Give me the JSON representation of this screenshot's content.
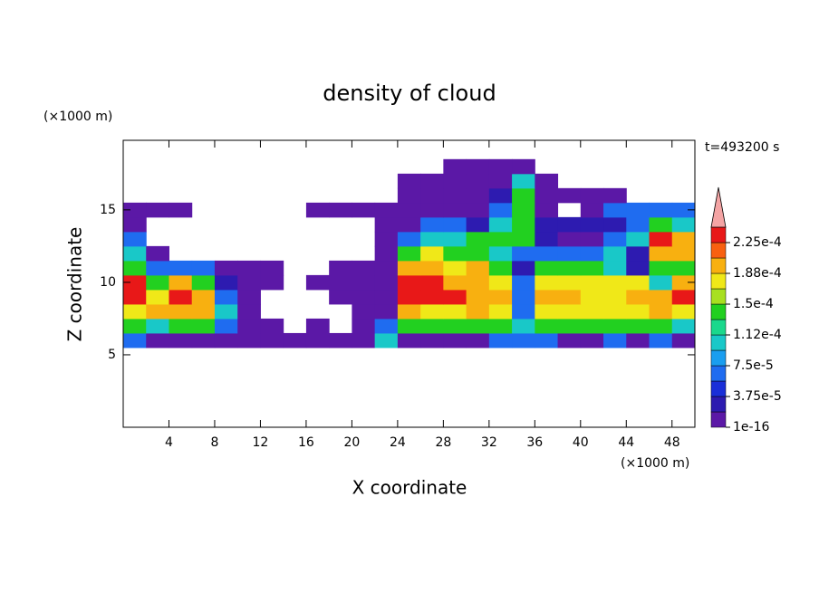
{
  "chart_data": {
    "type": "contour",
    "title": "density of cloud",
    "x_label": "X coordinate",
    "y_label": "Z coordinate",
    "x_unit": "(×1000 m)",
    "y_unit": "(×1000 m)",
    "time_label": "t=493200 s",
    "xlim": [
      0,
      50
    ],
    "xticks": [
      4,
      8,
      12,
      16,
      20,
      24,
      28,
      32,
      36,
      40,
      44,
      48
    ],
    "ylim": [
      0,
      19.8
    ],
    "yticks": [
      5,
      10,
      15
    ],
    "x": [
      1,
      3,
      5,
      7,
      9,
      11,
      13,
      15,
      17,
      19,
      21,
      23,
      25,
      27,
      29,
      31,
      33,
      35,
      37,
      39,
      41,
      43,
      45,
      47,
      49
    ],
    "y": [
      6,
      7,
      8,
      9,
      10,
      11,
      12,
      13,
      14,
      15,
      16,
      17,
      18
    ],
    "values": [
      [
        6e-05,
        1e-05,
        1e-05,
        1e-05,
        1e-05,
        1e-05,
        1e-05,
        1e-05,
        1e-05,
        1e-05,
        1e-05,
        0.0001,
        1e-05,
        1e-05,
        1e-05,
        1e-05,
        6e-05,
        6e-05,
        6e-05,
        1e-05,
        1e-05,
        6e-05,
        1e-05,
        6e-05,
        1e-05
      ],
      [
        0.00014,
        0.0001,
        0.00014,
        0.00014,
        6e-05,
        1e-05,
        1e-05,
        null,
        1e-05,
        null,
        1e-05,
        6e-05,
        0.00014,
        0.00014,
        0.00014,
        0.00014,
        0.00014,
        0.0001,
        0.00014,
        0.00014,
        0.00014,
        0.00014,
        0.00014,
        0.00014,
        0.0001
      ],
      [
        0.00017,
        0.0002,
        0.0002,
        0.0002,
        0.0001,
        1e-05,
        null,
        null,
        null,
        null,
        1e-05,
        1e-05,
        0.0002,
        0.00017,
        0.00017,
        0.0002,
        0.00017,
        6e-05,
        0.00017,
        0.00017,
        0.00017,
        0.00017,
        0.00017,
        0.0002,
        0.00017
      ],
      [
        0.00023,
        0.00017,
        0.00023,
        0.0002,
        6e-05,
        1e-05,
        null,
        null,
        null,
        1e-05,
        1e-05,
        1e-05,
        0.00023,
        0.00023,
        0.00023,
        0.0002,
        0.0002,
        6e-05,
        0.0002,
        0.0002,
        0.00017,
        0.00017,
        0.0002,
        0.0002,
        0.00023
      ],
      [
        0.00023,
        0.00014,
        0.0002,
        0.00014,
        3e-05,
        1e-05,
        1e-05,
        null,
        1e-05,
        1e-05,
        1e-05,
        1e-05,
        0.00023,
        0.00023,
        0.0002,
        0.0002,
        0.00017,
        6e-05,
        0.00017,
        0.00017,
        0.00017,
        0.00017,
        0.00017,
        0.0001,
        0.0002
      ],
      [
        0.00014,
        6e-05,
        6e-05,
        6e-05,
        1e-05,
        1e-05,
        1e-05,
        null,
        null,
        1e-05,
        1e-05,
        1e-05,
        0.0002,
        0.0002,
        0.00017,
        0.0002,
        0.00014,
        3e-05,
        0.00014,
        0.00014,
        0.00014,
        0.0001,
        3e-05,
        0.00014,
        0.00014
      ],
      [
        0.0001,
        1e-05,
        null,
        null,
        null,
        null,
        null,
        null,
        null,
        null,
        null,
        1e-05,
        0.00014,
        0.00017,
        0.00014,
        0.00014,
        0.0001,
        6e-05,
        6e-05,
        6e-05,
        6e-05,
        0.0001,
        3e-05,
        0.0002,
        0.0002
      ],
      [
        6e-05,
        null,
        null,
        null,
        null,
        null,
        null,
        null,
        null,
        null,
        null,
        1e-05,
        6e-05,
        0.0001,
        0.0001,
        0.00014,
        0.00014,
        0.00014,
        3e-05,
        1e-05,
        1e-05,
        6e-05,
        0.0001,
        0.00023,
        0.0002
      ],
      [
        1e-05,
        null,
        null,
        null,
        null,
        null,
        null,
        null,
        null,
        null,
        null,
        1e-05,
        1e-05,
        6e-05,
        6e-05,
        3e-05,
        0.0001,
        0.00014,
        3e-05,
        3e-05,
        3e-05,
        3e-05,
        6e-05,
        0.00014,
        0.0001
      ],
      [
        1e-05,
        1e-05,
        1e-05,
        null,
        null,
        null,
        null,
        null,
        1e-05,
        1e-05,
        1e-05,
        1e-05,
        1e-05,
        1e-05,
        1e-05,
        1e-05,
        6e-05,
        0.00014,
        1e-05,
        null,
        1e-05,
        6e-05,
        6e-05,
        6e-05,
        6e-05
      ],
      [
        null,
        null,
        null,
        null,
        null,
        null,
        null,
        null,
        null,
        null,
        null,
        null,
        1e-05,
        1e-05,
        1e-05,
        1e-05,
        3e-05,
        0.00014,
        1e-05,
        1e-05,
        1e-05,
        1e-05,
        null,
        null,
        null
      ],
      [
        null,
        null,
        null,
        null,
        null,
        null,
        null,
        null,
        null,
        null,
        null,
        null,
        1e-05,
        1e-05,
        1e-05,
        1e-05,
        1e-05,
        0.0001,
        1e-05,
        null,
        null,
        null,
        null,
        null,
        null
      ],
      [
        null,
        null,
        null,
        null,
        null,
        null,
        null,
        null,
        null,
        null,
        null,
        null,
        null,
        null,
        1e-05,
        1e-05,
        1e-05,
        1e-05,
        null,
        null,
        null,
        null,
        null,
        null,
        null
      ]
    ],
    "colorbar": {
      "levels": [
        1e-16,
        1.875e-05,
        3.75e-05,
        5.625e-05,
        7.5e-05,
        9.375e-05,
        0.0001125,
        0.00013125,
        0.00015,
        0.00016875,
        0.0001875,
        0.00020625,
        0.000225,
        0.00024375
      ],
      "colors": [
        "#5b18a6",
        "#2d1bb0",
        "#1a2fd8",
        "#1f6cf0",
        "#1a9ef0",
        "#19c8c8",
        "#1ad88c",
        "#22d020",
        "#a8e020",
        "#f0e818",
        "#f8b010",
        "#f86010",
        "#e81818"
      ],
      "over_color": "#f4a4a4",
      "ticks": [
        {
          "value": 1e-16,
          "label": "1e-16"
        },
        {
          "value": 3.75e-05,
          "label": "3.75e-5"
        },
        {
          "value": 7.5e-05,
          "label": "7.5e-5"
        },
        {
          "value": 0.0001125,
          "label": "1.12e-4"
        },
        {
          "value": 0.00015,
          "label": "1.5e-4"
        },
        {
          "value": 0.0001875,
          "label": "1.88e-4"
        },
        {
          "value": 0.000225,
          "label": "2.25e-4"
        }
      ]
    }
  }
}
